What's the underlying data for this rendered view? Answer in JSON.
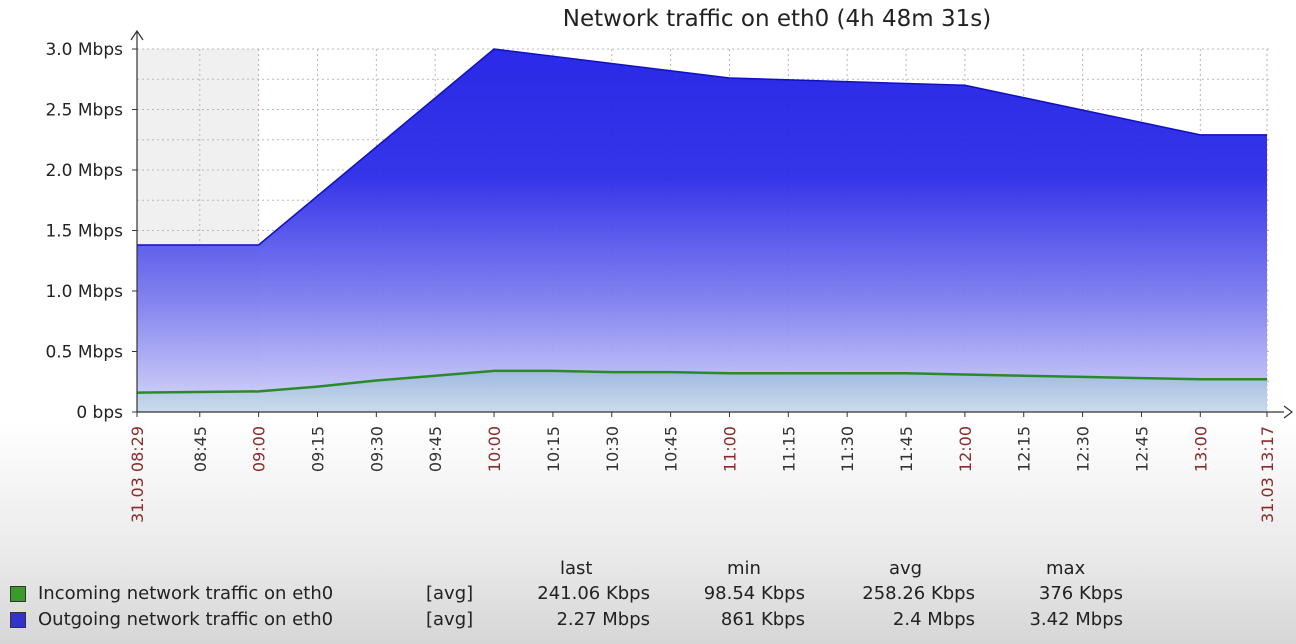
{
  "chart_data": {
    "type": "area",
    "title": "Network traffic on eth0 (4h 48m 31s)",
    "y_ticks": [
      "0 bps",
      "0.5 Mbps",
      "1.0 Mbps",
      "1.5 Mbps",
      "2.0 Mbps",
      "2.5 Mbps",
      "3.0 Mbps"
    ],
    "ylim": [
      0,
      3.0
    ],
    "y_unit": "Mbps",
    "x_ticks": [
      {
        "label": "31.03 08:29",
        "t": 0,
        "highlight": true
      },
      {
        "label": "08:45",
        "t": 16,
        "highlight": false
      },
      {
        "label": "09:00",
        "t": 31,
        "highlight": true
      },
      {
        "label": "09:15",
        "t": 46,
        "highlight": false
      },
      {
        "label": "09:30",
        "t": 61,
        "highlight": false
      },
      {
        "label": "09:45",
        "t": 76,
        "highlight": false
      },
      {
        "label": "10:00",
        "t": 91,
        "highlight": true
      },
      {
        "label": "10:15",
        "t": 106,
        "highlight": false
      },
      {
        "label": "10:30",
        "t": 121,
        "highlight": false
      },
      {
        "label": "10:45",
        "t": 136,
        "highlight": false
      },
      {
        "label": "11:00",
        "t": 151,
        "highlight": true
      },
      {
        "label": "11:15",
        "t": 166,
        "highlight": false
      },
      {
        "label": "11:30",
        "t": 181,
        "highlight": false
      },
      {
        "label": "11:45",
        "t": 196,
        "highlight": false
      },
      {
        "label": "12:00",
        "t": 211,
        "highlight": true
      },
      {
        "label": "12:15",
        "t": 226,
        "highlight": false
      },
      {
        "label": "12:30",
        "t": 241,
        "highlight": false
      },
      {
        "label": "12:45",
        "t": 256,
        "highlight": false
      },
      {
        "label": "13:00",
        "t": 271,
        "highlight": true
      },
      {
        "label": "31.03 13:17",
        "t": 288,
        "highlight": true
      }
    ],
    "x_range": [
      0,
      288
    ],
    "shaded_until": 31,
    "series": [
      {
        "name": "Outgoing network traffic on eth0",
        "color": "#2222dd",
        "points": [
          [
            0,
            1.38
          ],
          [
            31,
            1.38
          ],
          [
            91,
            3.0
          ],
          [
            151,
            2.76
          ],
          [
            211,
            2.7
          ],
          [
            271,
            2.29
          ],
          [
            288,
            2.29
          ]
        ]
      },
      {
        "name": "Incoming network traffic on eth0",
        "color": "#2a8a2a",
        "points": [
          [
            0,
            0.16
          ],
          [
            31,
            0.17
          ],
          [
            46,
            0.21
          ],
          [
            61,
            0.26
          ],
          [
            76,
            0.3
          ],
          [
            91,
            0.34
          ],
          [
            106,
            0.34
          ],
          [
            121,
            0.33
          ],
          [
            136,
            0.33
          ],
          [
            151,
            0.32
          ],
          [
            166,
            0.32
          ],
          [
            181,
            0.32
          ],
          [
            196,
            0.32
          ],
          [
            211,
            0.31
          ],
          [
            226,
            0.3
          ],
          [
            241,
            0.29
          ],
          [
            256,
            0.28
          ],
          [
            271,
            0.27
          ],
          [
            288,
            0.27
          ]
        ]
      }
    ],
    "grid": true,
    "legend_position": "bottom"
  },
  "legend": {
    "headers": {
      "last": "last",
      "min": "min",
      "avg": "avg",
      "max": "max"
    },
    "rows": [
      {
        "name": "Incoming network traffic on eth0",
        "func": "[avg]",
        "last": "241.06 Kbps",
        "min": "98.54 Kbps",
        "avg": "258.26 Kbps",
        "max": "376 Kbps",
        "color": "#3a9a2a"
      },
      {
        "name": "Outgoing network traffic on eth0",
        "func": "[avg]",
        "last": "2.27 Mbps",
        "min": "861 Kbps",
        "avg": "2.4 Mbps",
        "max": "3.42 Mbps",
        "color": "#3333cc"
      }
    ]
  }
}
